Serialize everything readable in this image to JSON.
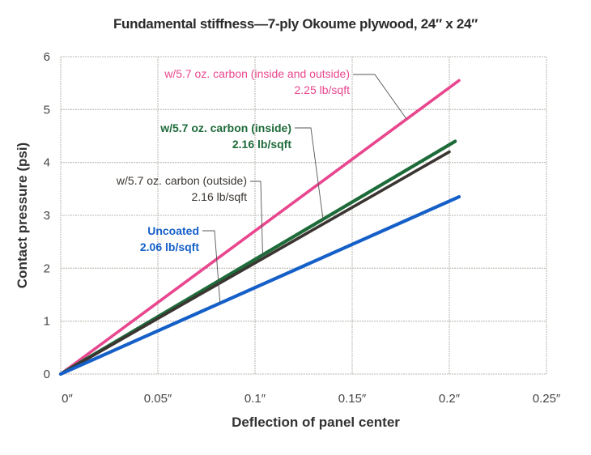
{
  "chart_data": {
    "type": "line",
    "title": "Fundamental stiffness—7-ply Okoume plywood, 24″ x 24″",
    "xlabel": "Deflection of panel center",
    "ylabel": "Contact pressure (psi)",
    "xlim": [
      0,
      0.25
    ],
    "ylim": [
      0,
      6
    ],
    "grid": true,
    "x_ticks": [
      0,
      0.05,
      0.1,
      0.15,
      0.2,
      0.25
    ],
    "x_tick_labels": [
      "0″",
      "0.05″",
      "0.1″",
      "0.15″",
      "0.2″",
      "0.25″"
    ],
    "y_ticks": [
      0,
      1,
      2,
      3,
      4,
      5,
      6
    ],
    "y_tick_labels": [
      "0",
      "1",
      "2",
      "3",
      "4",
      "5",
      "6"
    ],
    "series": [
      {
        "name": "w/5.7 oz. carbon (inside and outside)",
        "weight": "2.25 lb/sqft",
        "color": "#e8478f",
        "x": [
          0,
          0.205
        ],
        "y": [
          0,
          5.55
        ],
        "label_line1": "w/5.7 oz. carbon (inside and outside)",
        "label_line2": "2.25 lb/sqft",
        "bold": false
      },
      {
        "name": "w/5.7 oz. carbon (inside)",
        "weight": "2.16 lb/sqft",
        "color": "#1e6b3a",
        "x": [
          0,
          0.203
        ],
        "y": [
          0,
          4.4
        ],
        "label_line1": "w/5.7 oz. carbon (inside)",
        "label_line2": "2.16 lb/sqft",
        "bold": true
      },
      {
        "name": "w/5.7 oz. carbon (outside)",
        "weight": "2.16 lb/sqft",
        "color": "#3a3530",
        "x": [
          0,
          0.2
        ],
        "y": [
          0,
          4.2
        ],
        "label_line1": "w/5.7 oz. carbon (outside)",
        "label_line2": "2.16 lb/sqft",
        "bold": false
      },
      {
        "name": "Uncoated",
        "weight": "2.06 lb/sqft",
        "color": "#1560c8",
        "x": [
          0,
          0.205
        ],
        "y": [
          0,
          3.35
        ],
        "label_line1": "Uncoated",
        "label_line2": "2.06 lb/sqft",
        "bold": true
      }
    ],
    "legend": "inline annotations with leader lines"
  }
}
